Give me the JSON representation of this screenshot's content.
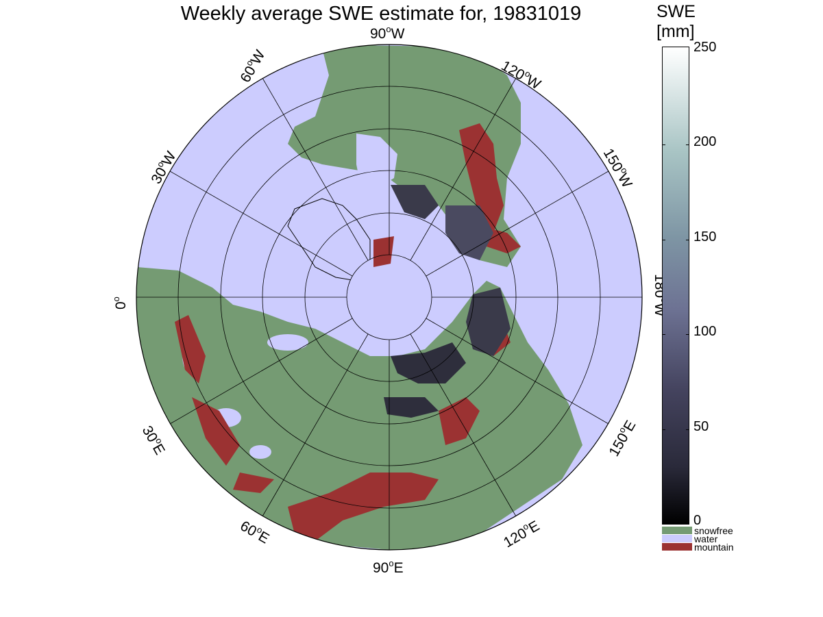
{
  "title": "Weekly average SWE estimate for, 19831019",
  "colorbar": {
    "title_line1": "SWE",
    "title_line2": "[mm]",
    "ticks": [
      "0",
      "50",
      "100",
      "150",
      "200",
      "250"
    ],
    "range": [
      0,
      250
    ]
  },
  "legend": [
    {
      "label": "snowfree",
      "color": "#759b73"
    },
    {
      "label": "water",
      "color": "#ccccfe"
    },
    {
      "label": "mountain",
      "color": "#9b3232"
    }
  ],
  "longitude_labels": {
    "lon_0": "0",
    "lon_30e": "30",
    "lon_60e": "60",
    "lon_90e": "90",
    "lon_120e": "120",
    "lon_150e": "150",
    "lon_180": "180",
    "lon_150w": "150",
    "lon_120w": "120",
    "lon_90w": "90",
    "lon_60w": "60",
    "lon_30w": "30",
    "suffix_e": "E",
    "suffix_w": "W",
    "degree": "o"
  },
  "colors": {
    "land_snowfree": "#759b73",
    "water": "#ccccfe",
    "mountain": "#9b3232",
    "snow_dark": "#3a3a4a"
  }
}
